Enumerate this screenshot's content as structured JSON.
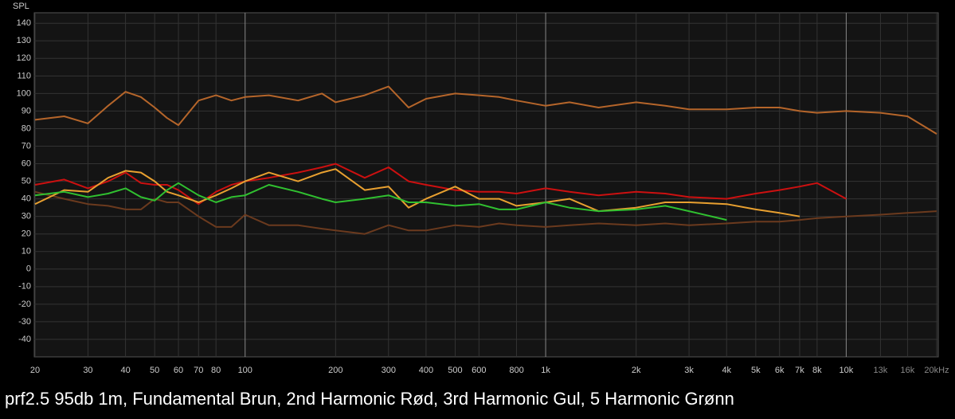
{
  "chart_data": {
    "type": "line",
    "title": "prf2.5 95db 1m, Fundamental Brun, 2nd Harmonic Rød, 3rd Harmonic Gul, 5 Harmonic Grønn",
    "y_label": "SPL",
    "x": [
      20,
      25,
      30,
      35,
      40,
      45,
      50,
      55,
      60,
      70,
      80,
      90,
      100,
      120,
      150,
      180,
      200,
      250,
      300,
      350,
      400,
      500,
      600,
      700,
      800,
      1000,
      1200,
      1500,
      2000,
      2500,
      3000,
      4000,
      5000,
      6000,
      7000,
      8000,
      10000,
      13000,
      16000,
      20000
    ],
    "x_scale": "log",
    "xlim": [
      20,
      20000
    ],
    "xticks": [
      20,
      30,
      40,
      50,
      60,
      70,
      80,
      100,
      200,
      300,
      400,
      500,
      600,
      800,
      {
        "value": 1000,
        "label": "1k"
      },
      {
        "value": 2000,
        "label": "2k"
      },
      {
        "value": 3000,
        "label": "3k"
      },
      {
        "value": 4000,
        "label": "4k"
      },
      {
        "value": 5000,
        "label": "5k"
      },
      {
        "value": 6000,
        "label": "6k"
      },
      {
        "value": 7000,
        "label": "7k"
      },
      {
        "value": 8000,
        "label": "8k"
      },
      {
        "value": 10000,
        "label": "10k"
      },
      {
        "value": 13000,
        "label": "13k"
      },
      {
        "value": 16000,
        "label": "16k"
      },
      {
        "value": 20000,
        "label": "20kHz"
      }
    ],
    "ylim": [
      -50,
      146
    ],
    "yticks": [
      140,
      130,
      120,
      110,
      100,
      90,
      80,
      70,
      60,
      50,
      40,
      30,
      20,
      10,
      0,
      -10,
      -20,
      -30,
      -40
    ],
    "grid": true,
    "series": [
      {
        "color": "#6b3a1e",
        "values": [
          44,
          40,
          37,
          36,
          34,
          34,
          40,
          38,
          38,
          30,
          24,
          24,
          31,
          25,
          25,
          23,
          22,
          20,
          25,
          22,
          22,
          25,
          24,
          26,
          25,
          24,
          25,
          26,
          25,
          26,
          25,
          26,
          27,
          27,
          28,
          29,
          30,
          31,
          32,
          33
        ]
      },
      {
        "color": "#b5652a",
        "values": [
          85,
          87,
          83,
          93,
          101,
          98,
          92,
          86,
          82,
          96,
          99,
          96,
          98,
          99,
          96,
          100,
          95,
          99,
          104,
          92,
          97,
          100,
          99,
          98,
          96,
          93,
          95,
          92,
          95,
          93,
          91,
          91,
          92,
          92,
          90,
          89,
          90,
          89,
          87,
          77
        ]
      },
      {
        "color": "#cc1010",
        "values": [
          48,
          51,
          46,
          50,
          55,
          49,
          48,
          48,
          45,
          37,
          44,
          48,
          50,
          52,
          55,
          58,
          60,
          52,
          58,
          50,
          48,
          45,
          44,
          44,
          43,
          46,
          44,
          42,
          44,
          43,
          41,
          40,
          43,
          45,
          47,
          49,
          40,
          null,
          null,
          null
        ]
      },
      {
        "color": "#e8a030",
        "values": [
          37,
          45,
          44,
          52,
          56,
          55,
          50,
          44,
          42,
          38,
          42,
          46,
          50,
          55,
          50,
          55,
          57,
          45,
          47,
          35,
          40,
          47,
          40,
          40,
          36,
          38,
          40,
          33,
          35,
          38,
          38,
          37,
          34,
          32,
          30,
          null,
          null,
          null,
          null,
          null
        ]
      },
      {
        "color": "#30c030",
        "values": [
          42,
          44,
          41,
          43,
          46,
          41,
          39,
          45,
          49,
          42,
          38,
          41,
          42,
          48,
          44,
          40,
          38,
          40,
          42,
          38,
          38,
          36,
          37,
          34,
          34,
          38,
          35,
          33,
          34,
          36,
          33,
          28,
          null,
          null,
          null,
          null,
          null,
          null,
          null,
          null
        ]
      }
    ]
  }
}
